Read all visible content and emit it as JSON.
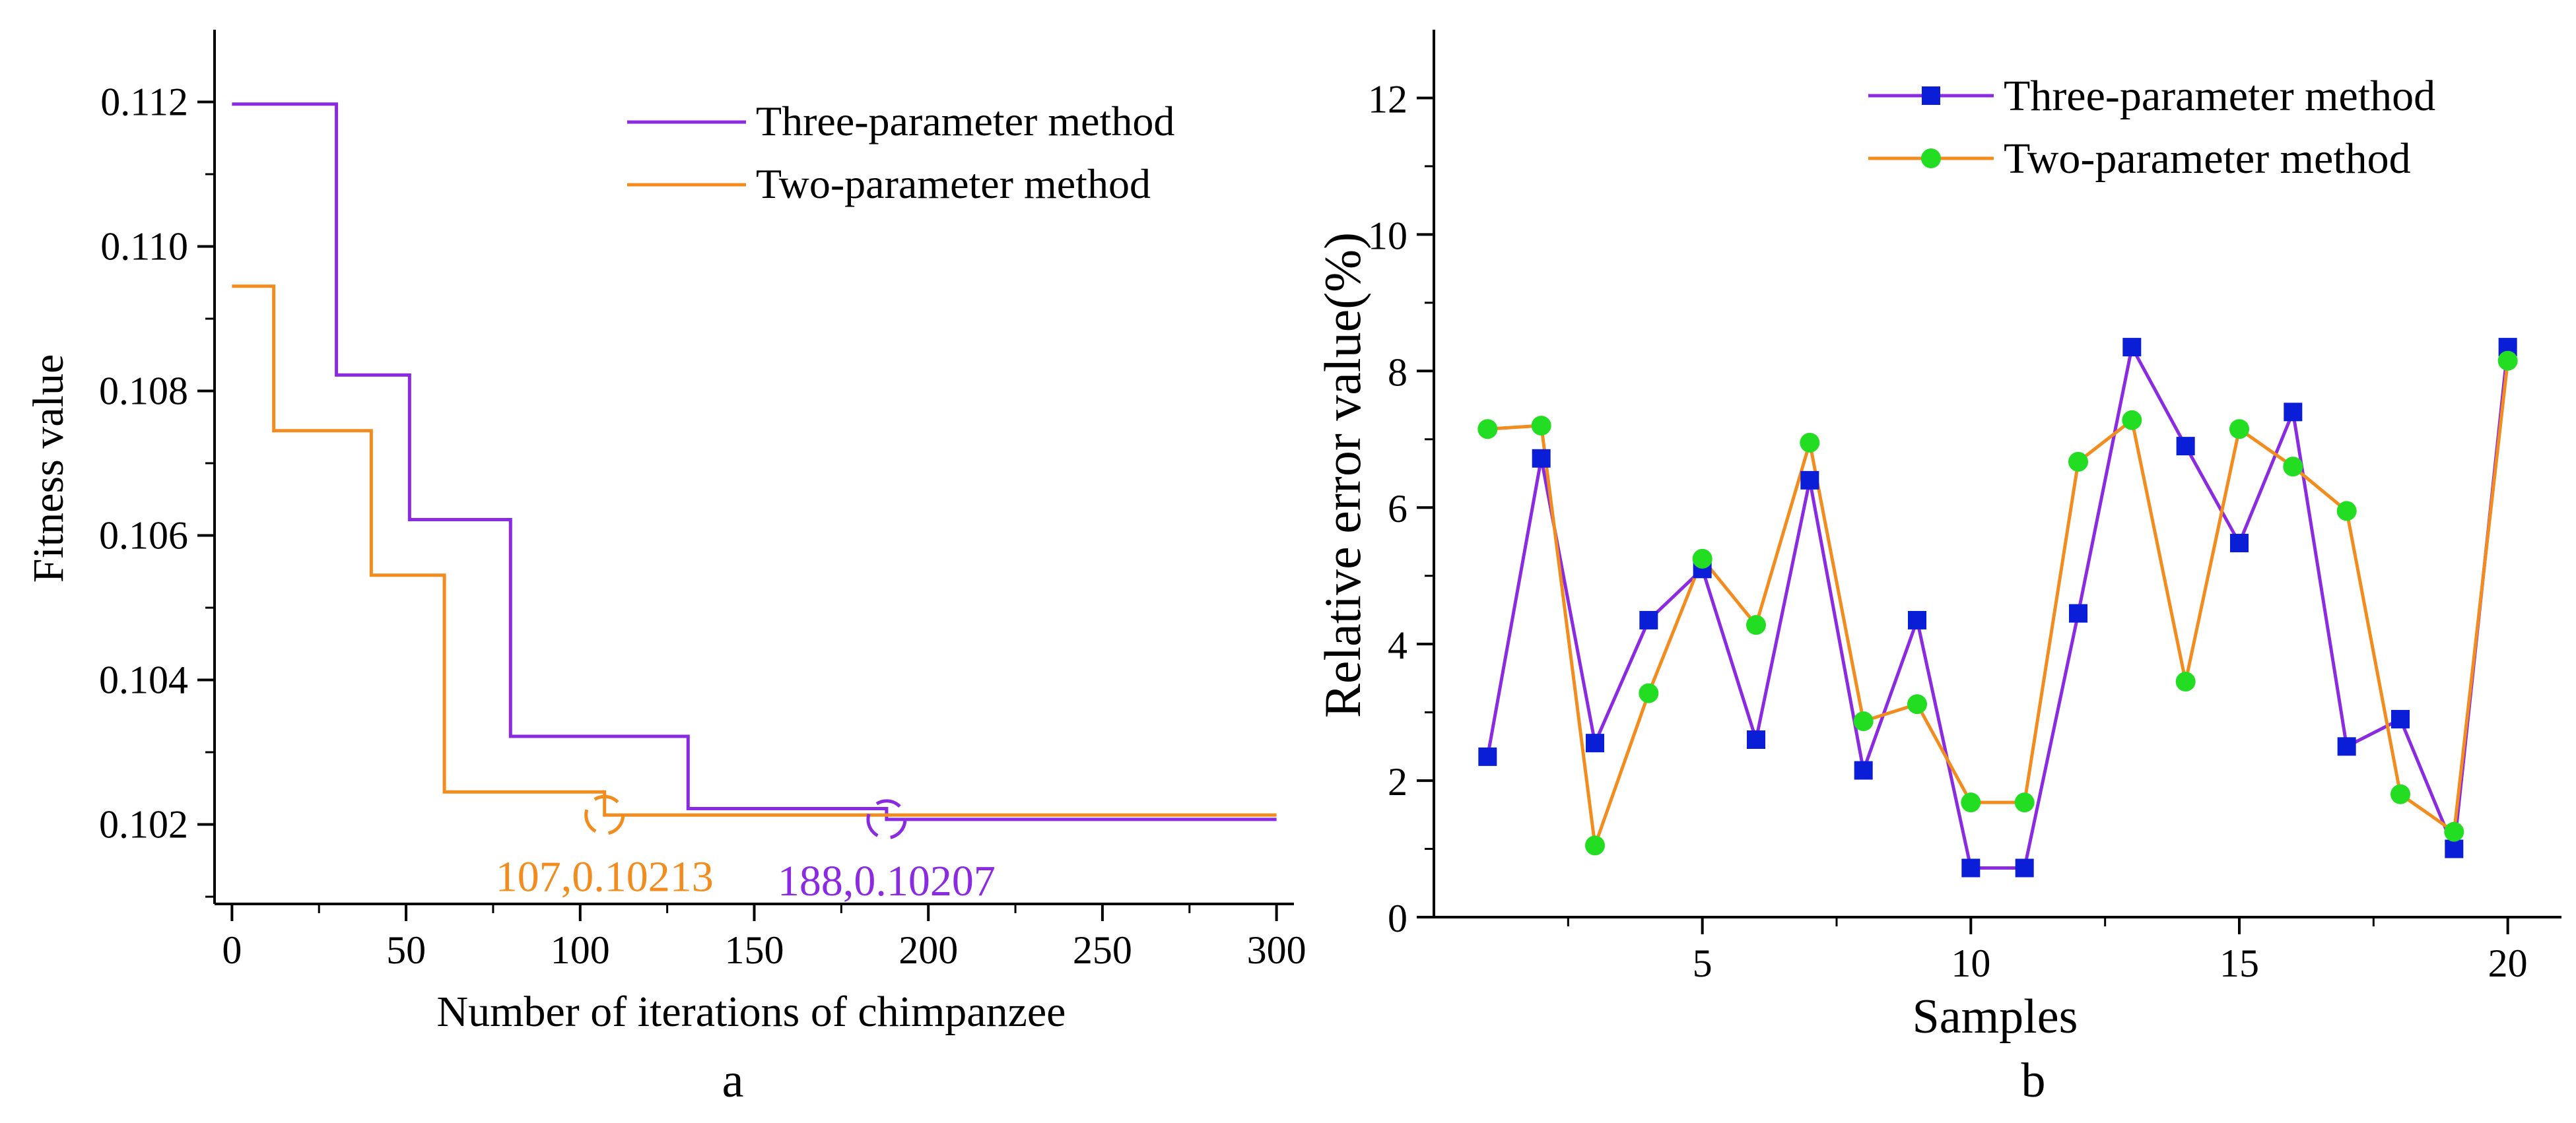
{
  "chart_data": [
    {
      "type": "line",
      "panel_label": "a",
      "xlabel": "Number of iterations of chimpanzee",
      "ylabel": "Fitness value",
      "xlim": [
        -5,
        305
      ],
      "ylim": [
        0.1009,
        0.113
      ],
      "x_ticks": [
        0,
        50,
        100,
        150,
        200,
        250,
        300
      ],
      "y_ticks": [
        0.102,
        0.104,
        0.106,
        0.108,
        0.11,
        0.112
      ],
      "x_tick_labels": [
        "0",
        "50",
        "100",
        "150",
        "200",
        "250",
        "300"
      ],
      "y_tick_labels": [
        "0.102",
        "0.104",
        "0.106",
        "0.108",
        "0.110",
        "0.112"
      ],
      "legend_position": "top-right",
      "step": true,
      "series": [
        {
          "name": "Three-parameter method",
          "color": "#8a2be2",
          "x": [
            0,
            30,
            51,
            80,
            131,
            188,
            300
          ],
          "y": [
            0.11197,
            0.10822,
            0.10622,
            0.10322,
            0.10222,
            0.10207,
            0.10207
          ]
        },
        {
          "name": "Two-parameter method",
          "color": "#f28c1e",
          "x": [
            0,
            12,
            40,
            61,
            107,
            300
          ],
          "y": [
            0.10945,
            0.10745,
            0.10545,
            0.10245,
            0.10213,
            0.10213
          ]
        }
      ],
      "annotations": [
        {
          "text": "107,0.10213",
          "x": 107,
          "y": 0.10213,
          "color": "#f28c1e"
        },
        {
          "text": "188,0.10207",
          "x": 188,
          "y": 0.10207,
          "color": "#8a2be2"
        }
      ]
    },
    {
      "type": "line",
      "panel_label": "b",
      "xlabel": "Samples",
      "ylabel": "Relative error value(%)",
      "xlim": [
        0,
        21
      ],
      "ylim": [
        0,
        13
      ],
      "x_ticks": [
        5,
        10,
        15,
        20
      ],
      "y_ticks": [
        0,
        2,
        4,
        6,
        8,
        10,
        12
      ],
      "x_tick_labels": [
        "5",
        "10",
        "15",
        "20"
      ],
      "y_tick_labels": [
        "0",
        "2",
        "4",
        "6",
        "8",
        "10",
        "12"
      ],
      "legend_position": "top-right",
      "x": [
        1,
        2,
        3,
        4,
        5,
        6,
        7,
        8,
        9,
        10,
        11,
        12,
        13,
        14,
        15,
        16,
        17,
        18,
        19,
        20
      ],
      "series": [
        {
          "name": "Three-parameter method",
          "line_color": "#8a2be2",
          "marker": "square",
          "marker_color": "#0a1ed8",
          "values": [
            2.35,
            6.72,
            2.55,
            4.35,
            5.1,
            2.6,
            6.4,
            2.15,
            4.35,
            0.72,
            0.72,
            4.45,
            8.35,
            6.9,
            5.48,
            7.4,
            2.5,
            2.9,
            1.0,
            8.35
          ]
        },
        {
          "name": "Two-parameter method",
          "line_color": "#f28c1e",
          "marker": "circle",
          "marker_color": "#22dd22",
          "values": [
            7.15,
            7.2,
            1.05,
            3.28,
            5.25,
            4.28,
            6.95,
            2.87,
            3.12,
            1.68,
            1.68,
            6.67,
            7.28,
            3.45,
            7.15,
            6.6,
            5.95,
            1.8,
            1.25,
            8.15
          ]
        }
      ]
    }
  ]
}
